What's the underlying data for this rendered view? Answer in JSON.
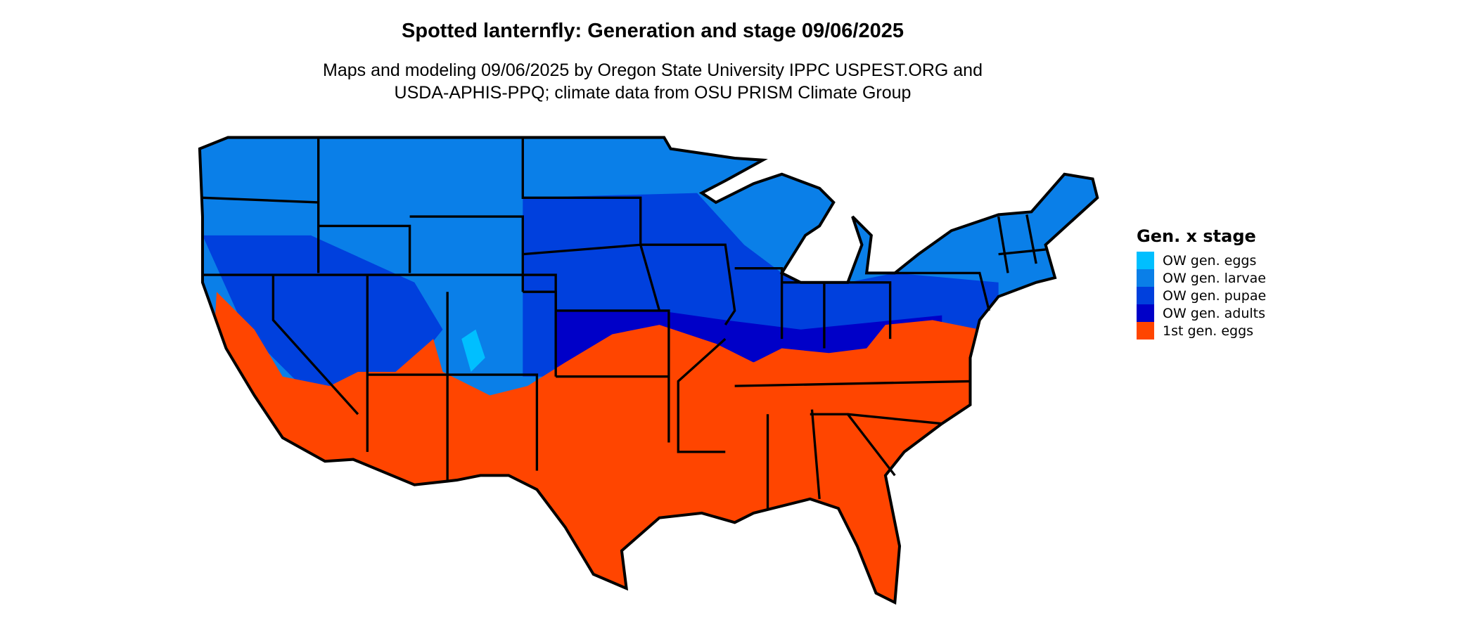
{
  "title": "Spotted lanternfly: Generation and stage 09/06/2025",
  "subtitle": [
    "Maps and modeling 09/06/2025 by Oregon State University IPPC USPEST.ORG and",
    "USDA-APHIS-PPQ; climate data from OSU PRISM Climate Group"
  ],
  "legend": {
    "title": "Gen. x stage",
    "items": [
      {
        "label": "OW gen. eggs",
        "color": "#00BFFF"
      },
      {
        "label": "OW gen. larvae",
        "color": "#0A7FE8"
      },
      {
        "label": "OW gen. pupae",
        "color": "#0040DD"
      },
      {
        "label": "OW gen. adults",
        "color": "#0000C8"
      },
      {
        "label": "1st gen. eggs",
        "color": "#FF4500"
      }
    ]
  },
  "map": {
    "region": "Contiguous United States",
    "borders_color": "#000000"
  }
}
